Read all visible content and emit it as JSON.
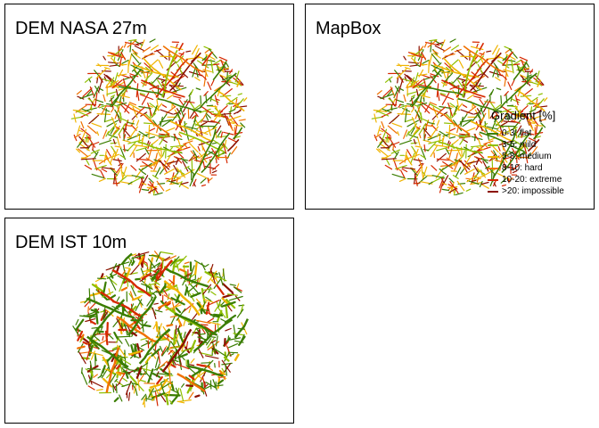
{
  "panels": [
    {
      "title": "DEM NASA 27m",
      "palette": "nasa"
    },
    {
      "title": "MapBox",
      "palette": "mapbox"
    },
    {
      "title": "DEM IST 10m",
      "palette": "ist"
    }
  ],
  "legend": {
    "title": "Gradient [%]",
    "items": [
      {
        "label": "0-3: flat",
        "color": "#3a7d00"
      },
      {
        "label": "3-5: mild",
        "color": "#8fbf00"
      },
      {
        "label": "5-8: medium",
        "color": "#f0b400"
      },
      {
        "label": "8-10: hard",
        "color": "#f07000"
      },
      {
        "label": "10-20: extreme",
        "color": "#d62800"
      },
      {
        "label": ">20: impossible",
        "color": "#8c1000"
      }
    ]
  },
  "colors": {
    "flat": "#3a7d00",
    "mild": "#8fbf00",
    "medium": "#f0b400",
    "hard": "#f07000",
    "extreme": "#d62800",
    "impossible": "#8c1000"
  }
}
